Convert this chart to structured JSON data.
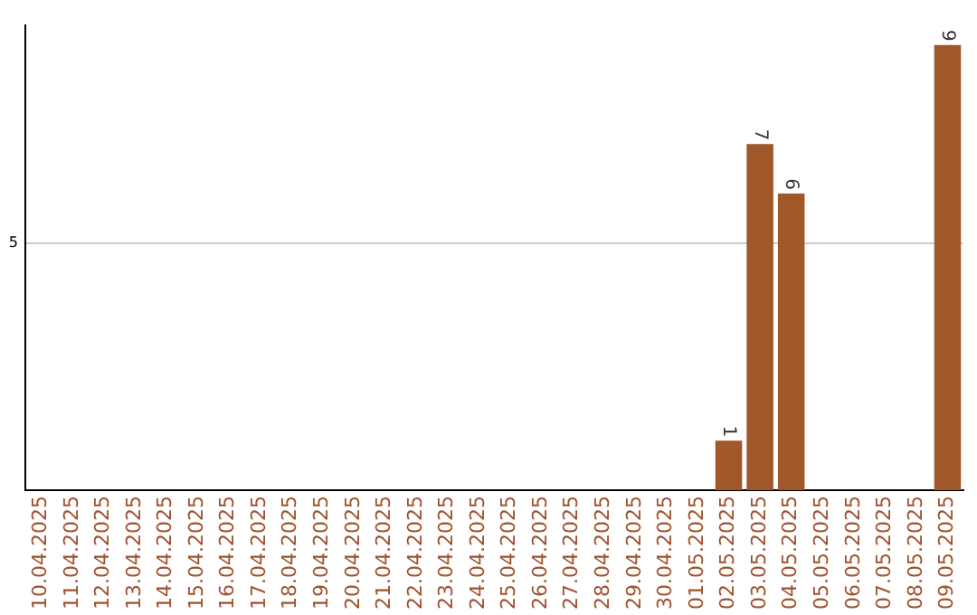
{
  "chart_data": {
    "type": "bar",
    "categories": [
      "10.04.2025",
      "11.04.2025",
      "12.04.2025",
      "13.04.2025",
      "14.04.2025",
      "15.04.2025",
      "16.04.2025",
      "17.04.2025",
      "18.04.2025",
      "19.04.2025",
      "20.04.2025",
      "21.04.2025",
      "22.04.2025",
      "23.04.2025",
      "24.04.2025",
      "25.04.2025",
      "26.04.2025",
      "27.04.2025",
      "28.04.2025",
      "29.04.2025",
      "30.04.2025",
      "01.05.2025",
      "02.05.2025",
      "03.05.2025",
      "04.05.2025",
      "05.05.2025",
      "06.05.2025",
      "07.05.2025",
      "08.05.2025",
      "09.05.2025"
    ],
    "values": [
      null,
      null,
      null,
      null,
      null,
      null,
      null,
      null,
      null,
      null,
      null,
      null,
      null,
      null,
      null,
      null,
      null,
      null,
      null,
      null,
      null,
      null,
      1,
      7,
      6,
      null,
      null,
      null,
      null,
      9
    ],
    "value_labels": [
      null,
      null,
      null,
      null,
      null,
      null,
      null,
      null,
      null,
      null,
      null,
      null,
      null,
      null,
      null,
      null,
      null,
      null,
      null,
      null,
      null,
      null,
      "1",
      "7",
      "6",
      null,
      null,
      null,
      null,
      "9"
    ],
    "color": "#a0572a",
    "ylim": [
      0,
      9.4
    ],
    "yticks": [
      5
    ],
    "grid": "y",
    "legend": false
  }
}
